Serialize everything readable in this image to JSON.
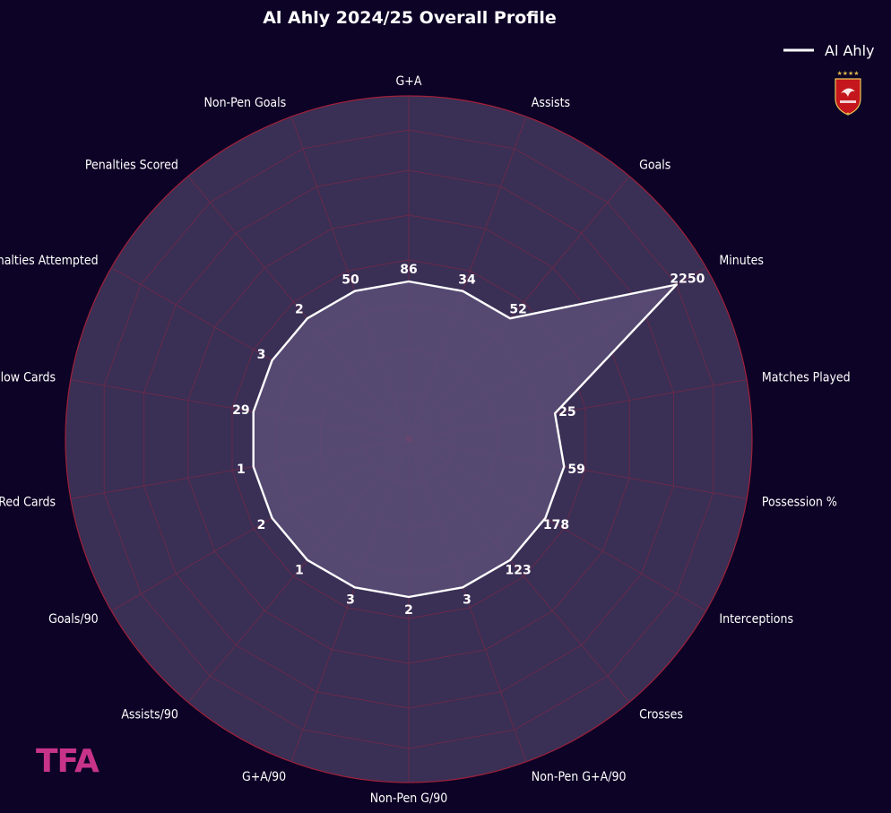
{
  "chart_data": {
    "type": "radar",
    "title": "Al Ahly 2024/25 Overall Profile",
    "series": [
      {
        "name": "Al Ahly",
        "color": "#ffffff",
        "fill": "#5a4d78",
        "categories": [
          "Minutes",
          "Matches Played",
          "Possession %",
          "Interceptions",
          "Crosses",
          "Non-Pen G+A/90",
          "Non-Pen G/90",
          "G+A/90",
          "Assists/90",
          "Goals/90",
          "Red Cards",
          "Yellow Cards",
          "Penalties Attempted",
          "Penalties Scored",
          "Non-Pen Goals",
          "G+A",
          "Assists",
          "Goals"
        ],
        "value_labels": [
          "2250",
          "25",
          "59",
          "178",
          "123",
          "3",
          "2",
          "3",
          "1",
          "2",
          "1",
          "29",
          "3",
          "2",
          "50",
          "86",
          "34",
          "52"
        ],
        "radii": [
          1.0,
          0.48,
          0.51,
          0.51,
          0.51,
          0.51,
          0.51,
          0.51,
          0.51,
          0.51,
          0.51,
          0.51,
          0.51,
          0.51,
          0.51,
          0.51,
          0.51,
          0.51
        ]
      }
    ],
    "grid": true,
    "legend_position": "top-right"
  },
  "legend": {
    "label": "Al Ahly"
  },
  "logo": {
    "name": "al-ahly-crest-icon"
  },
  "brand": {
    "text": "TFA"
  },
  "colors": {
    "background": "#0d0326",
    "disc": "#3a2f55",
    "grid": "#6a2a4a",
    "rim": "#a0203a",
    "center_dot": "#c0203a"
  }
}
